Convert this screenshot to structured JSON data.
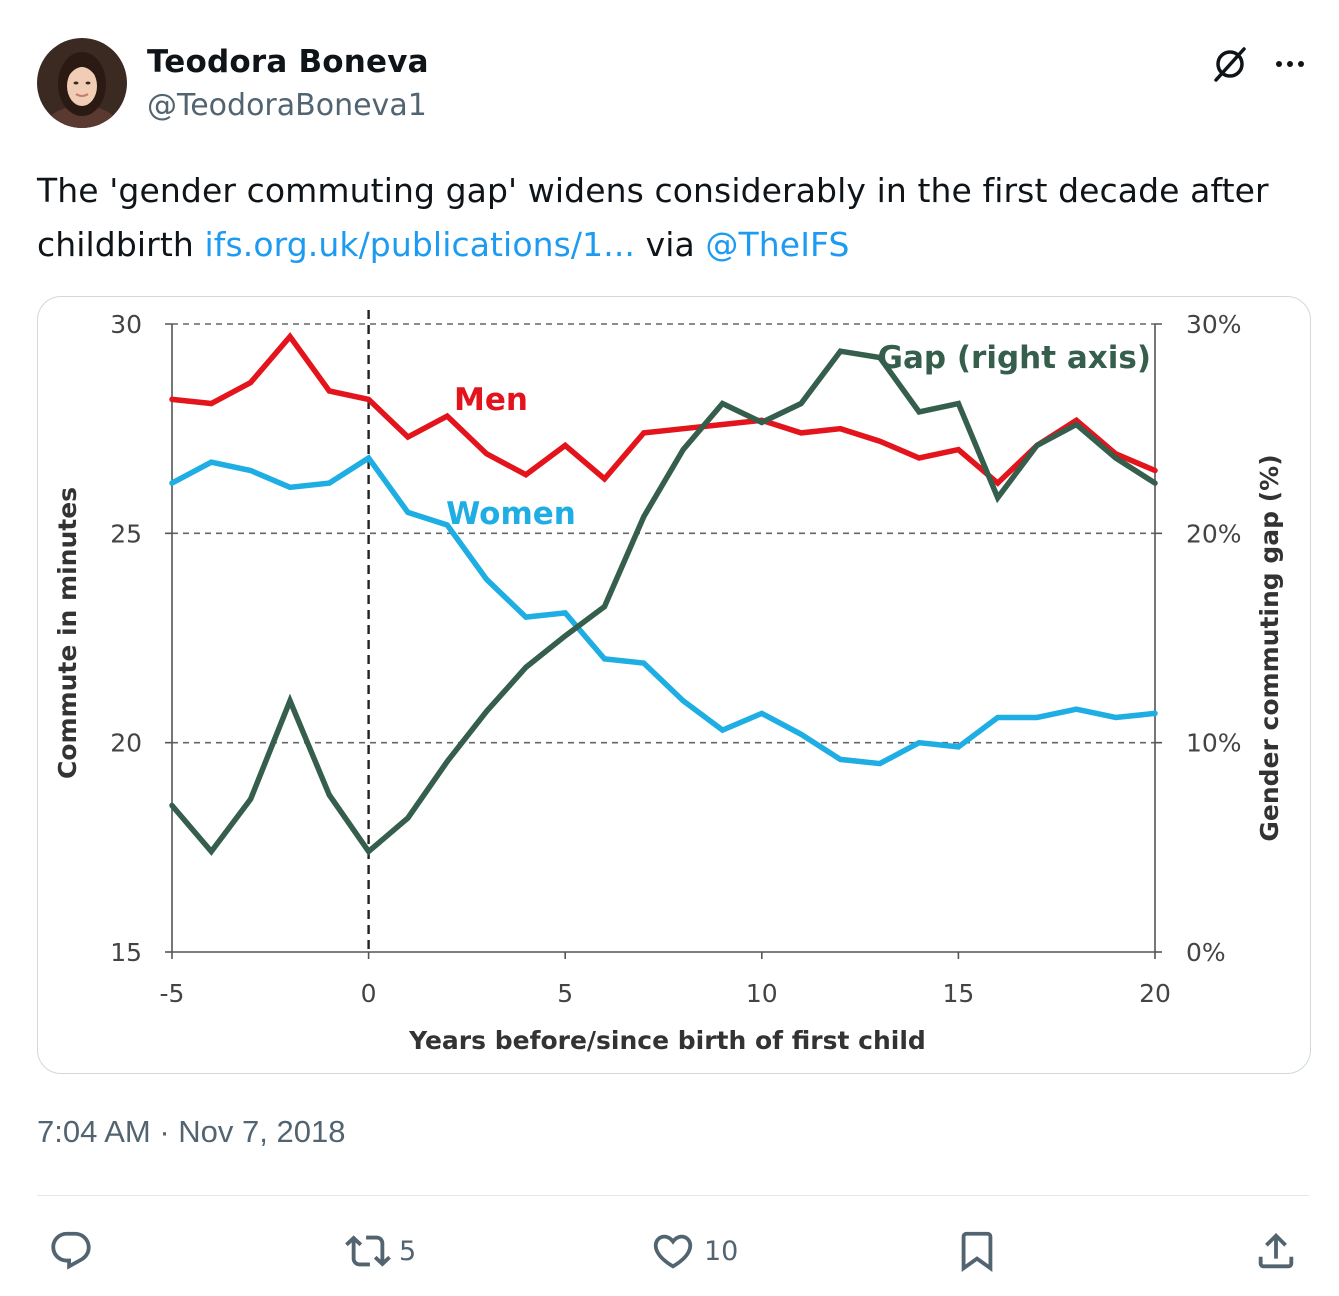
{
  "author": {
    "name": "Teodora Boneva",
    "handle": "@TeodoraBoneva1"
  },
  "tweet": {
    "text_pre": "The 'gender commuting gap' widens considerably in the first decade after childbirth ",
    "link_text": "ifs.org.uk/publications/1...",
    "text_mid": " via ",
    "mention": "@TheIFS",
    "timestamp": "7:04 AM · Nov 7, 2018"
  },
  "actions": {
    "retweets": "5",
    "likes": "10"
  },
  "colors": {
    "men": "#e3141b",
    "women": "#1eaee4",
    "gap": "#355e4c",
    "link": "#1d9bf0"
  },
  "chart_data": {
    "type": "line",
    "xlabel": "Years before/since birth of first child",
    "ylabel_left": "Commute in minutes",
    "ylabel_right": "Gender commuting gap (%)",
    "x": [
      -5,
      -4,
      -3,
      -2,
      -1,
      0,
      1,
      2,
      3,
      4,
      5,
      6,
      7,
      8,
      9,
      10,
      11,
      12,
      13,
      14,
      15,
      16,
      17,
      18,
      19,
      20
    ],
    "xlim": [
      -5,
      20
    ],
    "ylim_left": [
      15,
      30
    ],
    "ylim_right": [
      0,
      30
    ],
    "x_ticks": [
      "-5",
      "0",
      "5",
      "10",
      "15",
      "20"
    ],
    "y_ticks_left": [
      "15",
      "20",
      "25",
      "30"
    ],
    "y_ticks_right": [
      "0%",
      "10%",
      "20%",
      "30%"
    ],
    "vline_x": 0,
    "grid": "horizontal dashed",
    "series": [
      {
        "name": "Men",
        "axis": "left",
        "color": "#e3141b",
        "values": [
          28.2,
          28.1,
          28.6,
          29.7,
          28.4,
          28.2,
          27.3,
          27.8,
          26.9,
          26.4,
          27.1,
          26.3,
          27.4,
          27.5,
          27.6,
          27.7,
          27.4,
          27.5,
          27.2,
          26.8,
          27.0,
          26.2,
          27.1,
          27.7,
          26.9,
          26.5
        ]
      },
      {
        "name": "Women",
        "axis": "left",
        "color": "#1eaee4",
        "values": [
          26.2,
          26.7,
          26.5,
          26.1,
          26.2,
          26.8,
          25.5,
          25.2,
          23.9,
          23.0,
          23.1,
          22.0,
          21.9,
          21.0,
          20.3,
          20.7,
          20.2,
          19.6,
          19.5,
          20.0,
          19.9,
          20.6,
          20.6,
          20.8,
          20.6,
          20.7
        ]
      },
      {
        "name": "Gap (right axis)",
        "axis": "right",
        "color": "#355e4c",
        "values": [
          7.0,
          4.8,
          7.3,
          12.0,
          7.5,
          4.8,
          6.4,
          9.1,
          11.5,
          13.6,
          15.1,
          16.5,
          20.8,
          24.0,
          26.2,
          25.3,
          26.2,
          28.7,
          28.4,
          25.8,
          26.2,
          21.7,
          24.2,
          25.2,
          23.6,
          22.4
        ]
      }
    ]
  }
}
